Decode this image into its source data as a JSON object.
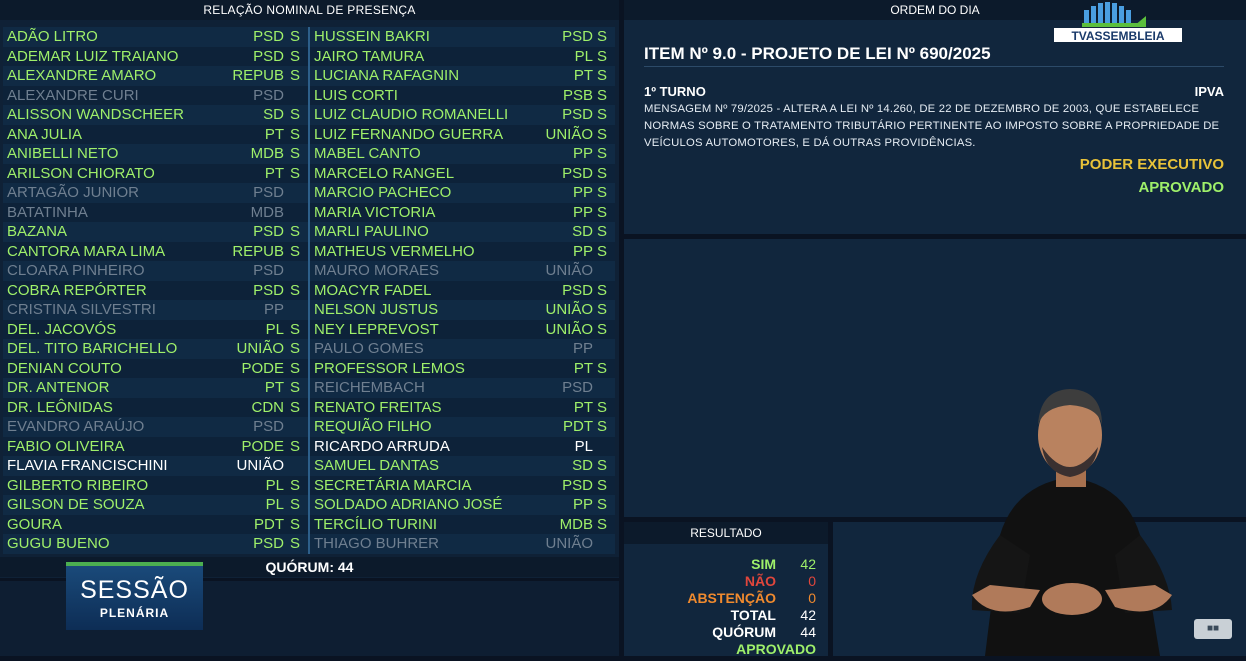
{
  "presence": {
    "title": "RELAÇÃO NOMINAL DE PRESENÇA",
    "left": [
      {
        "name": "ADÃO LITRO",
        "party": "PSD",
        "vote": "S",
        "state": "present"
      },
      {
        "name": "ADEMAR LUIZ TRAIANO",
        "party": "PSD",
        "vote": "S",
        "state": "present"
      },
      {
        "name": "ALEXANDRE AMARO",
        "party": "REPUB",
        "vote": "S",
        "state": "present"
      },
      {
        "name": "ALEXANDRE CURI",
        "party": "PSD",
        "vote": "",
        "state": "absent"
      },
      {
        "name": "ALISSON WANDSCHEER",
        "party": "SD",
        "vote": "S",
        "state": "present"
      },
      {
        "name": "ANA JULIA",
        "party": "PT",
        "vote": "S",
        "state": "present"
      },
      {
        "name": "ANIBELLI NETO",
        "party": "MDB",
        "vote": "S",
        "state": "present"
      },
      {
        "name": "ARILSON CHIORATO",
        "party": "PT",
        "vote": "S",
        "state": "present"
      },
      {
        "name": "ARTAGÃO JUNIOR",
        "party": "PSD",
        "vote": "",
        "state": "absent"
      },
      {
        "name": "BATATINHA",
        "party": "MDB",
        "vote": "",
        "state": "absent"
      },
      {
        "name": "BAZANA",
        "party": "PSD",
        "vote": "S",
        "state": "present"
      },
      {
        "name": "CANTORA MARA LIMA",
        "party": "REPUB",
        "vote": "S",
        "state": "present"
      },
      {
        "name": "CLOARA PINHEIRO",
        "party": "PSD",
        "vote": "",
        "state": "absent"
      },
      {
        "name": "COBRA REPÓRTER",
        "party": "PSD",
        "vote": "S",
        "state": "present"
      },
      {
        "name": "CRISTINA SILVESTRI",
        "party": "PP",
        "vote": "",
        "state": "absent"
      },
      {
        "name": "DEL. JACOVÓS",
        "party": "PL",
        "vote": "S",
        "state": "present"
      },
      {
        "name": "DEL. TITO BARICHELLO",
        "party": "UNIÃO",
        "vote": "S",
        "state": "present"
      },
      {
        "name": "DENIAN COUTO",
        "party": "PODE",
        "vote": "S",
        "state": "present"
      },
      {
        "name": "DR. ANTENOR",
        "party": "PT",
        "vote": "S",
        "state": "present"
      },
      {
        "name": "DR. LEÔNIDAS",
        "party": "CDN",
        "vote": "S",
        "state": "present"
      },
      {
        "name": "EVANDRO ARAÚJO",
        "party": "PSD",
        "vote": "",
        "state": "absent"
      },
      {
        "name": "FABIO OLIVEIRA",
        "party": "PODE",
        "vote": "S",
        "state": "present"
      },
      {
        "name": "FLAVIA FRANCISCHINI",
        "party": "UNIÃO",
        "vote": "",
        "state": "white"
      },
      {
        "name": "GILBERTO RIBEIRO",
        "party": "PL",
        "vote": "S",
        "state": "present"
      },
      {
        "name": "GILSON DE SOUZA",
        "party": "PL",
        "vote": "S",
        "state": "present"
      },
      {
        "name": "GOURA",
        "party": "PDT",
        "vote": "S",
        "state": "present"
      },
      {
        "name": "GUGU BUENO",
        "party": "PSD",
        "vote": "S",
        "state": "present"
      }
    ],
    "right": [
      {
        "name": "HUSSEIN BAKRI",
        "party": "PSD",
        "vote": "S",
        "state": "present"
      },
      {
        "name": "JAIRO TAMURA",
        "party": "PL",
        "vote": "S",
        "state": "present"
      },
      {
        "name": "LUCIANA RAFAGNIN",
        "party": "PT",
        "vote": "S",
        "state": "present"
      },
      {
        "name": "LUIS CORTI",
        "party": "PSB",
        "vote": "S",
        "state": "present"
      },
      {
        "name": "LUIZ CLAUDIO ROMANELLI",
        "party": "PSD",
        "vote": "S",
        "state": "present"
      },
      {
        "name": "LUIZ FERNANDO GUERRA",
        "party": "UNIÃO",
        "vote": "S",
        "state": "present"
      },
      {
        "name": "MABEL CANTO",
        "party": "PP",
        "vote": "S",
        "state": "present"
      },
      {
        "name": "MARCELO RANGEL",
        "party": "PSD",
        "vote": "S",
        "state": "present"
      },
      {
        "name": "MARCIO PACHECO",
        "party": "PP",
        "vote": "S",
        "state": "present"
      },
      {
        "name": "MARIA VICTORIA",
        "party": "PP",
        "vote": "S",
        "state": "present"
      },
      {
        "name": "MARLI PAULINO",
        "party": "SD",
        "vote": "S",
        "state": "present"
      },
      {
        "name": "MATHEUS VERMELHO",
        "party": "PP",
        "vote": "S",
        "state": "present"
      },
      {
        "name": "MAURO MORAES",
        "party": "UNIÃO",
        "vote": "",
        "state": "absent"
      },
      {
        "name": "MOACYR FADEL",
        "party": "PSD",
        "vote": "S",
        "state": "present"
      },
      {
        "name": "NELSON JUSTUS",
        "party": "UNIÃO",
        "vote": "S",
        "state": "present"
      },
      {
        "name": "NEY LEPREVOST",
        "party": "UNIÃO",
        "vote": "S",
        "state": "present"
      },
      {
        "name": "PAULO GOMES",
        "party": "PP",
        "vote": "",
        "state": "absent"
      },
      {
        "name": "PROFESSOR LEMOS",
        "party": "PT",
        "vote": "S",
        "state": "present"
      },
      {
        "name": "REICHEMBACH",
        "party": "PSD",
        "vote": "",
        "state": "absent"
      },
      {
        "name": "RENATO FREITAS",
        "party": "PT",
        "vote": "S",
        "state": "present"
      },
      {
        "name": "REQUIÃO FILHO",
        "party": "PDT",
        "vote": "S",
        "state": "present"
      },
      {
        "name": "RICARDO ARRUDA",
        "party": "PL",
        "vote": "",
        "state": "white"
      },
      {
        "name": "SAMUEL DANTAS",
        "party": "SD",
        "vote": "S",
        "state": "present"
      },
      {
        "name": "SECRETÁRIA MARCIA",
        "party": "PSD",
        "vote": "S",
        "state": "present"
      },
      {
        "name": "SOLDADO ADRIANO JOSÉ",
        "party": "PP",
        "vote": "S",
        "state": "present"
      },
      {
        "name": "TERCÍLIO TURINI",
        "party": "MDB",
        "vote": "S",
        "state": "present"
      },
      {
        "name": "THIAGO BUHRER",
        "party": "UNIÃO",
        "vote": "",
        "state": "absent"
      }
    ],
    "quorum": "QUÓRUM: 44"
  },
  "session_logo": {
    "line1": "SESSÃO",
    "line2": "PLENÁRIA"
  },
  "order": {
    "title": "ORDEM DO DIA",
    "tv_logo": "TVASSEMBLEIA",
    "item_title": "ITEM Nº 9.0 - PROJETO DE LEI Nº 690/2025",
    "turno": "1º TURNO",
    "subject": "IPVA",
    "ementa": "MENSAGEM Nº 79/2025 - ALTERA A LEI Nº 14.260, DE 22 DE DEZEMBRO DE 2003, QUE ESTABELECE NORMAS SOBRE O TRATAMENTO TRIBUTÁRIO PERTINENTE AO IMPOSTO SOBRE A PROPRIEDADE DE VEÍCULOS AUTOMOTORES, E DÁ OUTRAS PROVIDÊNCIAS.",
    "author": "PODER EXECUTIVO",
    "status": "APROVADO"
  },
  "result": {
    "title": "RESULTADO",
    "rows": [
      {
        "label": "SIM",
        "value": "42",
        "color": "#9ff06a"
      },
      {
        "label": "NÃO",
        "value": "0",
        "color": "#e0463c"
      },
      {
        "label": "ABSTENÇÃO",
        "value": "0",
        "color": "#f08a2e"
      },
      {
        "label": "TOTAL",
        "value": "42",
        "color": "#ffffff"
      },
      {
        "label": "QUÓRUM",
        "value": "44",
        "color": "#ffffff"
      }
    ],
    "final": "APROVADO"
  },
  "colors": {
    "present": "#9ff06a",
    "absent": "#6f7f90",
    "white": "#ffffff",
    "accent": "#e8c239"
  }
}
